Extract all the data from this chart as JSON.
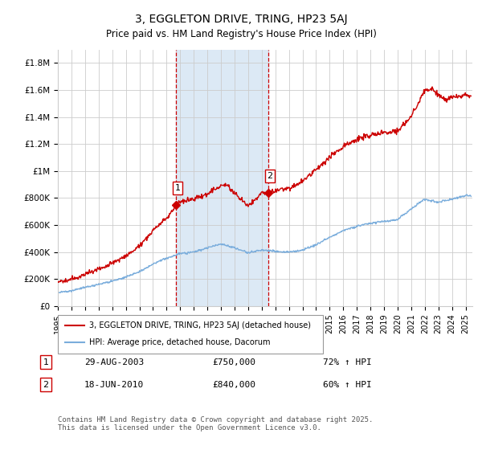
{
  "title": "3, EGGLETON DRIVE, TRING, HP23 5AJ",
  "subtitle": "Price paid vs. HM Land Registry's House Price Index (HPI)",
  "ylabel_ticks": [
    "£0",
    "£200K",
    "£400K",
    "£600K",
    "£800K",
    "£1M",
    "£1.2M",
    "£1.4M",
    "£1.6M",
    "£1.8M"
  ],
  "ytick_vals": [
    0,
    200000,
    400000,
    600000,
    800000,
    1000000,
    1200000,
    1400000,
    1600000,
    1800000
  ],
  "ylim": [
    0,
    1900000
  ],
  "xlim_start": 1995,
  "xlim_end": 2025.5,
  "xticks": [
    1995,
    1996,
    1997,
    1998,
    1999,
    2000,
    2001,
    2002,
    2003,
    2004,
    2005,
    2006,
    2007,
    2008,
    2009,
    2010,
    2011,
    2012,
    2013,
    2014,
    2015,
    2016,
    2017,
    2018,
    2019,
    2020,
    2021,
    2022,
    2023,
    2024,
    2025
  ],
  "sale1_x": 2003.66,
  "sale1_y": 750000,
  "sale1_label": "1",
  "sale2_x": 2010.46,
  "sale2_y": 840000,
  "sale2_label": "2",
  "shade_color": "#dce9f5",
  "vline_color": "#cc0000",
  "red_line_color": "#cc0000",
  "blue_line_color": "#7aaddc",
  "legend_label_red": "3, EGGLETON DRIVE, TRING, HP23 5AJ (detached house)",
  "legend_label_blue": "HPI: Average price, detached house, Dacorum",
  "table_row1": [
    "1",
    "29-AUG-2003",
    "£750,000",
    "72% ↑ HPI"
  ],
  "table_row2": [
    "2",
    "18-JUN-2010",
    "£840,000",
    "60% ↑ HPI"
  ],
  "footer": "Contains HM Land Registry data © Crown copyright and database right 2025.\nThis data is licensed under the Open Government Licence v3.0.",
  "background_color": "#ffffff",
  "grid_color": "#cccccc",
  "hpi_pts_x": [
    1995,
    1996,
    1997,
    1998,
    1999,
    2000,
    2001,
    2002,
    2003,
    2004,
    2005,
    2006,
    2007,
    2008,
    2009,
    2010,
    2011,
    2012,
    2013,
    2014,
    2015,
    2016,
    2017,
    2018,
    2019,
    2020,
    2021,
    2022,
    2023,
    2024,
    2025
  ],
  "hpi_pts_y": [
    100000,
    115000,
    138000,
    160000,
    185000,
    215000,
    255000,
    310000,
    355000,
    390000,
    400000,
    430000,
    460000,
    430000,
    395000,
    415000,
    405000,
    400000,
    415000,
    455000,
    510000,
    560000,
    590000,
    615000,
    625000,
    640000,
    720000,
    790000,
    770000,
    790000,
    820000
  ],
  "prop_pts_x": [
    1995,
    1996,
    1997,
    1998,
    1999,
    2000,
    2001,
    2002,
    2003,
    2003.66,
    2004,
    2005,
    2006,
    2007,
    2007.5,
    2008,
    2009,
    2010,
    2010.46,
    2011,
    2012,
    2013,
    2014,
    2015,
    2016,
    2017,
    2018,
    2019,
    2020,
    2021,
    2022,
    2022.5,
    2023,
    2023.5,
    2024,
    2025
  ],
  "prop_pts_y": [
    175000,
    200000,
    235000,
    270000,
    315000,
    370000,
    440000,
    560000,
    650000,
    750000,
    770000,
    795000,
    830000,
    890000,
    900000,
    830000,
    745000,
    835000,
    840000,
    855000,
    870000,
    920000,
    1010000,
    1100000,
    1185000,
    1235000,
    1265000,
    1285000,
    1295000,
    1405000,
    1590000,
    1610000,
    1560000,
    1530000,
    1545000,
    1560000
  ]
}
